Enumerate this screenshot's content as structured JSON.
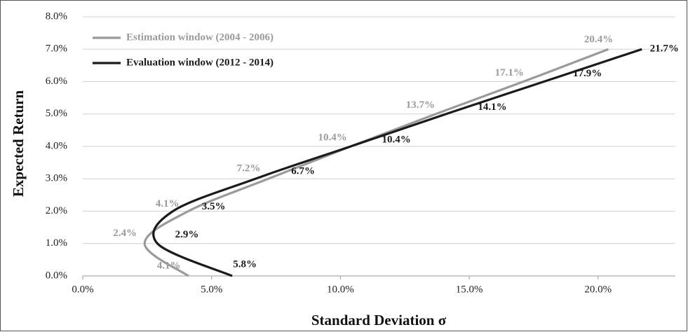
{
  "chart_data": {
    "type": "line",
    "x_label": "Standard Deviation σ",
    "y_label": "Expected Return",
    "series": [
      {
        "name": "Estimation window (2004 - 2006)",
        "color": "#9a9a9a",
        "x": [
          4.1,
          2.4,
          4.1,
          7.2,
          10.4,
          13.7,
          17.1,
          20.4
        ],
        "values": [
          0,
          1,
          2,
          3,
          4,
          5,
          6,
          7
        ],
        "value_labels": [
          "4.1%",
          "2.4%",
          "4.1%",
          "7.2%",
          "10.4%",
          "13.7%",
          "17.1%",
          "20.4%"
        ]
      },
      {
        "name": "Evaluation window (2012 - 2014)",
        "color": "#1a1a1a",
        "x": [
          5.8,
          2.9,
          3.5,
          6.7,
          10.4,
          14.1,
          17.9,
          21.7
        ],
        "values": [
          0,
          1,
          2,
          3,
          4,
          5,
          6,
          7
        ],
        "value_labels": [
          "5.8%",
          "2.9%",
          "3.5%",
          "6.7%",
          "10.4%",
          "14.1%",
          "17.9%",
          "21.7%"
        ]
      }
    ],
    "xlim": [
      0,
      23
    ],
    "xticks": [
      {
        "value": 0,
        "label": "0.0%"
      },
      {
        "value": 5,
        "label": "5.0%"
      },
      {
        "value": 10,
        "label": "10.0%"
      },
      {
        "value": 15,
        "label": "15.0%"
      },
      {
        "value": 20,
        "label": "20.0%"
      }
    ],
    "ylim": [
      0,
      8
    ],
    "yticks": [
      {
        "value": 0,
        "label": "0.0%"
      },
      {
        "value": 1,
        "label": "1.0%"
      },
      {
        "value": 2,
        "label": "2.0%"
      },
      {
        "value": 3,
        "label": "3.0%"
      },
      {
        "value": 4,
        "label": "4.0%"
      },
      {
        "value": 5,
        "label": "5.0%"
      },
      {
        "value": 6,
        "label": "6.0%"
      },
      {
        "value": 7,
        "label": "7.0%"
      },
      {
        "value": 8,
        "label": "8.0%"
      }
    ],
    "grid": true,
    "legend": "top-left"
  }
}
